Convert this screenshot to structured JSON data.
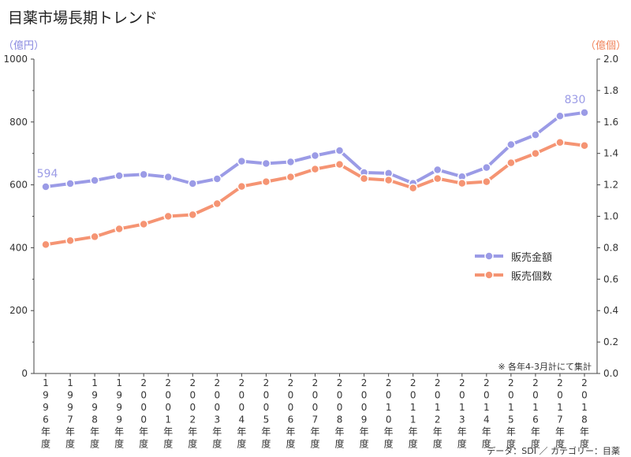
{
  "page": {
    "title": "目薬市場長期トレンド",
    "left_unit": "（億円）",
    "right_unit": "（億個）",
    "note": "※ 各年4-3月計にて集計",
    "source": "データ：SDI ／ カテゴリー：目薬"
  },
  "chart_data": {
    "type": "line",
    "title": "目薬市場長期トレンド",
    "categories": [
      "1996年度",
      "1997年度",
      "1998年度",
      "1999年度",
      "2000年度",
      "2001年度",
      "2002年度",
      "2003年度",
      "2004年度",
      "2005年度",
      "2006年度",
      "2007年度",
      "2008年度",
      "2009年度",
      "2010年度",
      "2011年度",
      "2012年度",
      "2013年度",
      "2014年度",
      "2015年度",
      "2016年度",
      "2017年度",
      "2018年度"
    ],
    "y_left": {
      "label": "（億円）",
      "range": [
        0,
        1000
      ],
      "ticks": [
        "0",
        "200",
        "400",
        "600",
        "800",
        "1000"
      ]
    },
    "y_right": {
      "label": "（億個）",
      "range": [
        0,
        2.0
      ],
      "ticks": [
        "0.0",
        "0.2",
        "0.4",
        "0.6",
        "0.8",
        "1.0",
        "1.2",
        "1.4",
        "1.6",
        "1.8",
        "2.0"
      ]
    },
    "series": [
      {
        "name": "販売金額",
        "axis": "left",
        "color": "#9b9be6",
        "values": [
          594,
          604,
          614,
          629,
          633,
          625,
          604,
          619,
          675,
          668,
          673,
          693,
          709,
          639,
          637,
          605,
          648,
          626,
          655,
          728,
          759,
          819,
          830
        ],
        "data_labels": {
          "0": "594",
          "22": "830"
        }
      },
      {
        "name": "販売個数",
        "axis": "right",
        "color": "#f59473",
        "values": [
          0.82,
          0.845,
          0.87,
          0.92,
          0.95,
          1.0,
          1.01,
          1.08,
          1.19,
          1.22,
          1.25,
          1.3,
          1.33,
          1.24,
          1.23,
          1.18,
          1.24,
          1.21,
          1.22,
          1.34,
          1.4,
          1.47,
          1.45
        ]
      }
    ],
    "grid": false,
    "legend": "middle-right"
  }
}
